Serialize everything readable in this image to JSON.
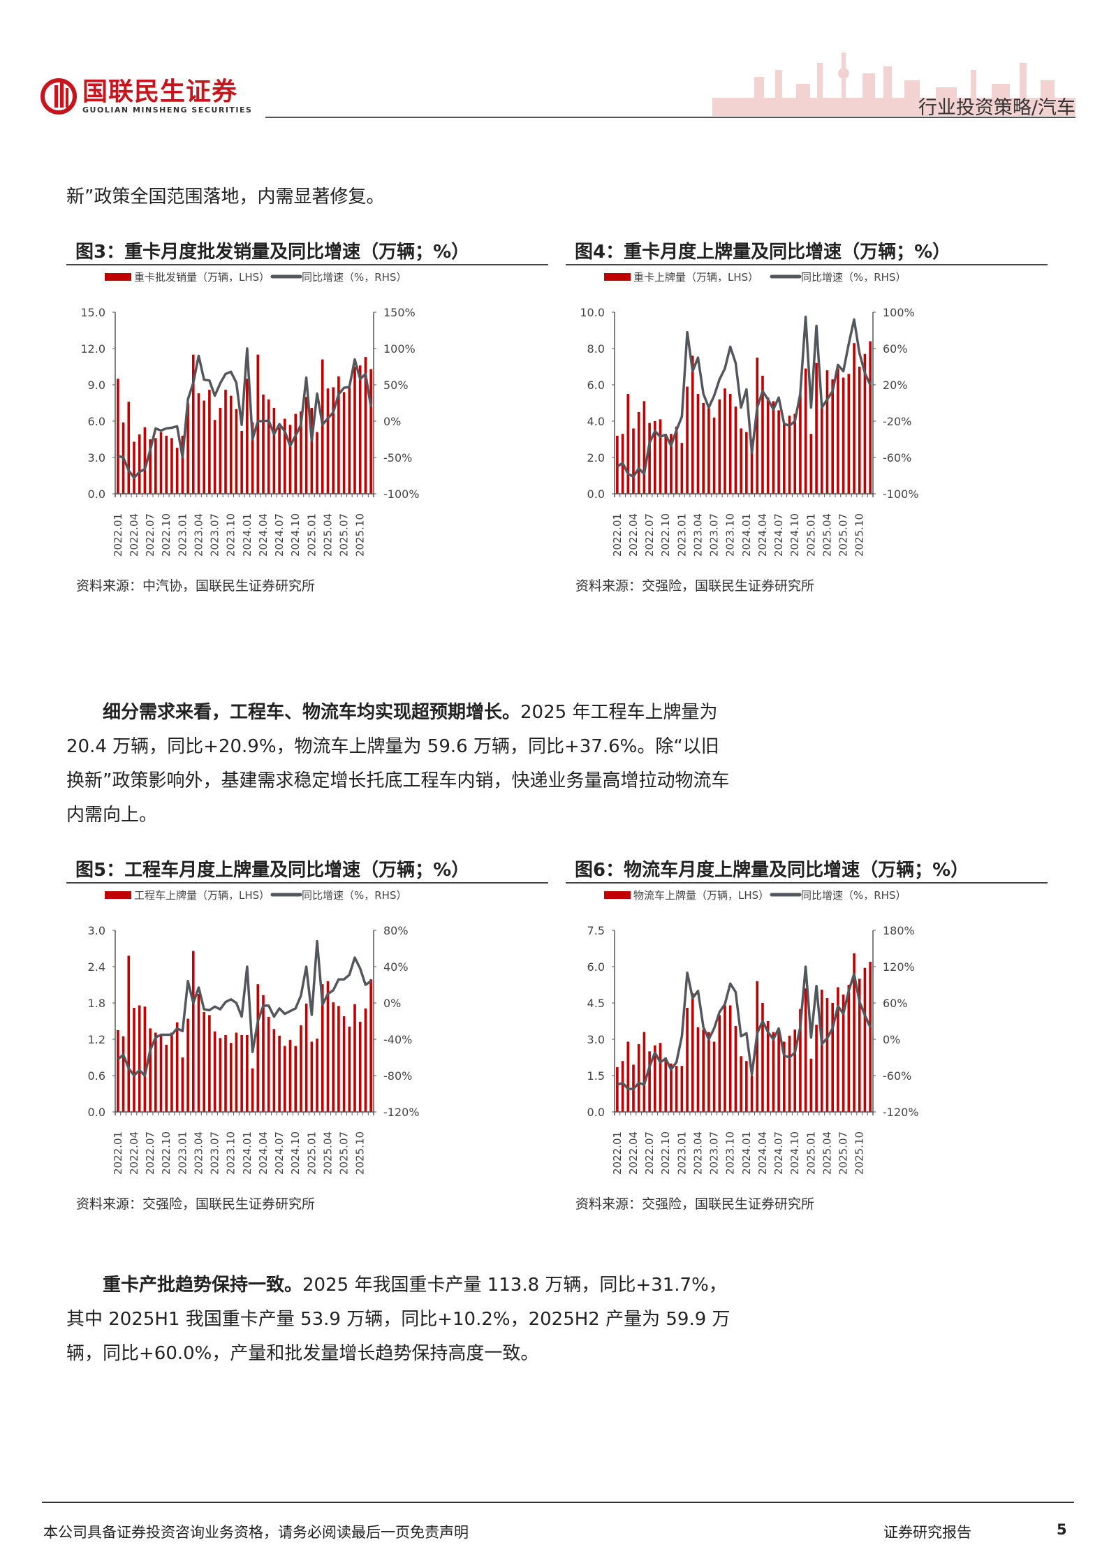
{
  "header": {
    "logo_cn": "国联民生证券",
    "logo_en": "GUOLIAN MINSHENG SECURITIES",
    "section": "行业投资策略/汽车"
  },
  "intro_text": "新”政策全国范围落地，内需显著修复。",
  "paragraph2": {
    "bold": "细分需求来看，工程车、物流车均实现超预期增长。",
    "text": "2025 年工程车上牌量为 20.4 万辆，同比+20.9%，物流车上牌量为 59.6 万辆，同比+37.6%。除“以旧换新”政策影响外，基建需求稳定增长托底工程车内销，快递业务量高增拉动物流车内需向上。"
  },
  "paragraph3": {
    "bold": "重卡产批趋势保持一致。",
    "text": "2025 年我国重卡产量 113.8 万辆，同比+31.7%，其中 2025H1 我国重卡产量 53.9 万辆，同比+10.2%，2025H2 产量为 59.9 万辆，同比+60.0%，产量和批发量增长趋势保持高度一致。"
  },
  "colors": {
    "bar": "#c00000",
    "line": "#53565a",
    "brand": "#c4161c"
  },
  "figures": [
    {
      "title": "图3：重卡月度批发销量及同比增速（万辆；%）",
      "source": "资料来源：中汽协，国联民生证券研究所"
    },
    {
      "title": "图4：重卡月度上牌量及同比增速（万辆；%）",
      "source": "资料来源：交强险，国联民生证券研究所"
    },
    {
      "title": "图5：工程车月度上牌量及同比增速（万辆；%）",
      "source": "资料来源：交强险，国联民生证券研究所"
    },
    {
      "title": "图6：物流车月度上牌量及同比增速（万辆；%）",
      "source": "资料来源：交强险，国联民生证券研究所"
    }
  ],
  "chart_data": [
    {
      "type": "bar+line",
      "x_tick_labels": [
        "2022.01",
        "2022.04",
        "2022.07",
        "2022.10",
        "2023.01",
        "2023.04",
        "2023.07",
        "2023.10",
        "2024.01",
        "2024.04",
        "2024.07",
        "2024.10",
        "2025.01",
        "2025.04",
        "2025.07",
        "2025.10"
      ],
      "months": 48,
      "start": "2022.01",
      "left_ticks": [
        "0.0",
        "3.0",
        "6.0",
        "9.0",
        "12.0",
        "15.0"
      ],
      "ylim": [
        0,
        15
      ],
      "right_ticks": [
        "-100%",
        "-50%",
        "0%",
        "50%",
        "100%",
        "150%"
      ],
      "y2lim": [
        -100,
        150
      ],
      "series": [
        {
          "name": "重卡批发销量（万辆，LHS）",
          "type": "bar",
          "values": [
            9.5,
            5.9,
            7.6,
            4.3,
            4.9,
            5.5,
            4.5,
            4.6,
            5.1,
            4.8,
            4.6,
            3.8,
            4.8,
            7.5,
            11.5,
            8.3,
            7.7,
            8.6,
            6.1,
            7.1,
            8.6,
            8.1,
            7.0,
            5.2,
            9.5,
            5.9,
            11.5,
            8.2,
            7.8,
            7.1,
            5.5,
            6.2,
            5.7,
            6.6,
            6.8,
            8.0,
            7.1,
            5.1,
            11.1,
            8.7,
            8.8,
            9.7,
            8.4,
            8.9,
            10.5,
            10.6,
            11.3,
            10.3
          ]
        },
        {
          "name": "同比增速（%，RHS）",
          "type": "line",
          "values": [
            -48,
            -50,
            -68,
            -78,
            -70,
            -66,
            -40,
            -10,
            -13,
            -10,
            -9,
            -7,
            -50,
            30,
            53,
            90,
            57,
            56,
            35,
            52,
            65,
            68,
            53,
            -5,
            100,
            -25,
            0,
            0,
            1,
            -18,
            -4,
            -14,
            -34,
            -20,
            -5,
            60,
            -27,
            38,
            -5,
            4,
            12,
            37,
            46,
            47,
            85,
            58,
            65,
            20
          ]
        }
      ]
    },
    {
      "type": "bar+line",
      "x_tick_labels": [
        "2022.01",
        "2022.04",
        "2022.07",
        "2022.10",
        "2023.01",
        "2023.04",
        "2023.07",
        "2023.10",
        "2024.01",
        "2024.04",
        "2024.07",
        "2024.10",
        "2025.01",
        "2025.04",
        "2025.07",
        "2025.10"
      ],
      "months": 48,
      "start": "2022.01",
      "left_ticks": [
        "0.0",
        "2.0",
        "4.0",
        "6.0",
        "8.0",
        "10.0"
      ],
      "ylim": [
        0,
        10
      ],
      "right_ticks": [
        "-100%",
        "-60%",
        "-20%",
        "20%",
        "60%",
        "100%"
      ],
      "y2lim": [
        -100,
        100
      ],
      "series": [
        {
          "name": "重卡上牌量（万辆，LHS）",
          "type": "bar",
          "values": [
            3.2,
            3.3,
            5.5,
            3.6,
            4.5,
            5.1,
            3.9,
            4.0,
            4.1,
            3.3,
            3.3,
            3.7,
            2.8,
            5.9,
            7.6,
            5.5,
            5.0,
            4.7,
            4.2,
            5.2,
            5.8,
            5.5,
            4.8,
            3.6,
            3.4,
            3.0,
            7.5,
            6.5,
            5.3,
            5.1,
            4.6,
            3.9,
            4.3,
            4.4,
            5.5,
            6.9,
            3.3,
            7.2,
            4.8,
            6.8,
            6.3,
            6.9,
            6.4,
            6.6,
            8.3,
            7.0,
            7.7,
            8.4
          ]
        },
        {
          "name": "同比增速（%，RHS）",
          "type": "line",
          "values": [
            -70,
            -66,
            -78,
            -81,
            -72,
            -78,
            -44,
            -31,
            -37,
            -35,
            -47,
            -30,
            -15,
            78,
            35,
            50,
            10,
            -5,
            8,
            26,
            38,
            62,
            44,
            -5,
            15,
            -55,
            -5,
            13,
            4,
            -7,
            6,
            -23,
            -25,
            -20,
            10,
            95,
            -5,
            85,
            -5,
            4,
            13,
            42,
            35,
            65,
            92,
            55,
            33,
            20
          ]
        }
      ]
    },
    {
      "type": "bar+line",
      "x_tick_labels": [
        "2022.01",
        "2022.04",
        "2022.07",
        "2022.10",
        "2023.01",
        "2023.04",
        "2023.07",
        "2023.10",
        "2024.01",
        "2024.04",
        "2024.07",
        "2024.10",
        "2025.01",
        "2025.04",
        "2025.07",
        "2025.10"
      ],
      "months": 48,
      "start": "2022.01",
      "left_ticks": [
        "0.0",
        "0.6",
        "1.2",
        "1.8",
        "2.4",
        "3.0"
      ],
      "ylim": [
        0,
        3
      ],
      "right_ticks": [
        "-120%",
        "-80%",
        "-40%",
        "0%",
        "40%",
        "80%"
      ],
      "y2lim": [
        -120,
        80
      ],
      "series": [
        {
          "name": "工程车上牌量（万辆，LHS）",
          "type": "bar",
          "values": [
            1.35,
            1.25,
            2.58,
            1.72,
            1.76,
            1.74,
            1.38,
            1.31,
            1.28,
            1.11,
            1.31,
            1.48,
            0.9,
            1.54,
            2.66,
            1.95,
            1.65,
            1.6,
            1.33,
            1.22,
            1.27,
            1.14,
            1.31,
            1.27,
            1.27,
            0.72,
            2.11,
            1.93,
            1.57,
            1.37,
            1.26,
            1.09,
            1.19,
            1.09,
            1.43,
            1.79,
            1.16,
            1.21,
            2.11,
            2.16,
            1.81,
            1.75,
            1.58,
            1.41,
            1.78,
            1.49,
            1.71,
            2.19
          ]
        },
        {
          "name": "同比增速（%，RHS）",
          "type": "line",
          "values": [
            -62,
            -57,
            -72,
            -80,
            -74,
            -80,
            -52,
            -38,
            -35,
            -35,
            -35,
            -28,
            -31,
            24,
            0,
            17,
            -7,
            -8,
            -4,
            -7,
            1,
            4,
            0,
            -15,
            40,
            -54,
            -20,
            -3,
            -3,
            -15,
            -6,
            -12,
            -9,
            -6,
            8,
            40,
            -13,
            68,
            -2,
            10,
            14,
            26,
            26,
            31,
            50,
            38,
            20,
            24
          ]
        }
      ]
    },
    {
      "type": "bar+line",
      "x_tick_labels": [
        "2022.01",
        "2022.04",
        "2022.07",
        "2022.10",
        "2023.01",
        "2023.04",
        "2023.07",
        "2023.10",
        "2024.01",
        "2024.04",
        "2024.07",
        "2024.10",
        "2025.01",
        "2025.04",
        "2025.07",
        "2025.10"
      ],
      "months": 48,
      "start": "2022.01",
      "left_ticks": [
        "0.0",
        "1.5",
        "3.0",
        "4.5",
        "6.0",
        "7.5"
      ],
      "ylim": [
        0,
        7.5
      ],
      "right_ticks": [
        "-120%",
        "-60%",
        "0%",
        "60%",
        "120%",
        "180%"
      ],
      "y2lim": [
        -120,
        180
      ],
      "series": [
        {
          "name": "物流车上牌量（万辆，LHS）",
          "type": "bar",
          "values": [
            1.85,
            2.1,
            2.9,
            1.95,
            2.8,
            3.3,
            2.5,
            2.75,
            2.85,
            2.25,
            2.0,
            1.9,
            1.9,
            4.3,
            4.9,
            3.5,
            3.4,
            3.3,
            2.9,
            4.0,
            4.4,
            4.4,
            3.55,
            2.3,
            2.1,
            1.5,
            5.4,
            4.5,
            3.75,
            3.3,
            3.3,
            2.9,
            3.15,
            3.4,
            4.25,
            5.1,
            2.2,
            3.6,
            5.05,
            4.7,
            4.5,
            5.15,
            4.85,
            5.25,
            6.55,
            5.5,
            5.95,
            6.2
          ]
        },
        {
          "name": "同比增速（%，RHS）",
          "type": "line",
          "values": [
            -75,
            -72,
            -82,
            -82,
            -72,
            -75,
            -45,
            -22,
            -38,
            -32,
            -50,
            -38,
            5,
            110,
            68,
            80,
            20,
            0,
            18,
            45,
            58,
            92,
            78,
            5,
            10,
            -58,
            10,
            30,
            12,
            0,
            18,
            -27,
            -30,
            -22,
            20,
            120,
            3,
            88,
            -8,
            2,
            18,
            55,
            42,
            80,
            108,
            62,
            40,
            20
          ]
        }
      ]
    }
  ],
  "footer": {
    "disclaimer": "本公司具备证券投资咨询业务资格，请务必阅读最后一页免责声明",
    "report_type": "证券研究报告",
    "page": "5"
  }
}
